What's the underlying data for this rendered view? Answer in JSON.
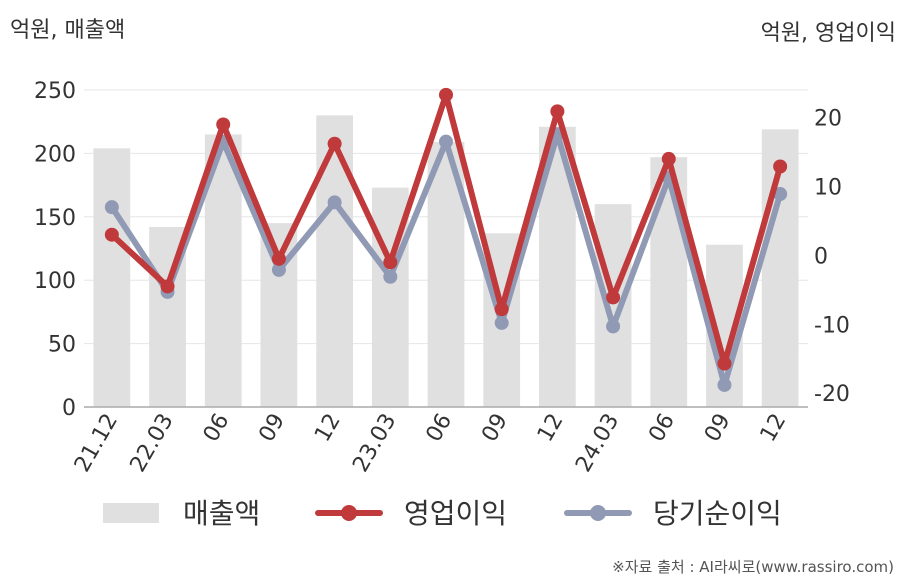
{
  "chart_data": {
    "type": "bar+line",
    "left_unit_label": "억원, 매출액",
    "right_unit_label": "억원, 영업이익",
    "categories": [
      "21.12",
      "22.03",
      "06",
      "09",
      "12",
      "23.03",
      "06",
      "09",
      "12",
      "24.03",
      "06",
      "09",
      "12"
    ],
    "left_axis": {
      "min": 0,
      "max": 250,
      "ticks": [
        0,
        50,
        100,
        150,
        200,
        250
      ]
    },
    "right_axis": {
      "min": -22,
      "max": 24,
      "ticks": [
        -20,
        -10,
        0,
        10,
        20
      ]
    },
    "series": [
      {
        "name": "매출액",
        "type": "bar",
        "axis": "left",
        "color": "#e0e0e0",
        "values": [
          204,
          142,
          215,
          145,
          230,
          173,
          209,
          137,
          221,
          160,
          197,
          128,
          219
        ]
      },
      {
        "name": "영업이익",
        "type": "line",
        "axis": "right",
        "color": "#c0393b",
        "values": [
          3,
          -4.5,
          19,
          -0.5,
          16.2,
          -1,
          23.3,
          -7.8,
          20.9,
          -6.1,
          14,
          -15.7,
          12.9
        ]
      },
      {
        "name": "당기순이익",
        "type": "line",
        "axis": "right",
        "color": "#909ab5",
        "values": [
          7,
          -5.3,
          16.5,
          -2.1,
          7.7,
          -3.1,
          16.5,
          -9.8,
          17.6,
          -10.3,
          11.3,
          -18.8,
          8.9
        ]
      }
    ],
    "grid": true,
    "legend_position": "bottom"
  },
  "source": "※자료 출처 : AI라씨로(www.rassiro.com)"
}
